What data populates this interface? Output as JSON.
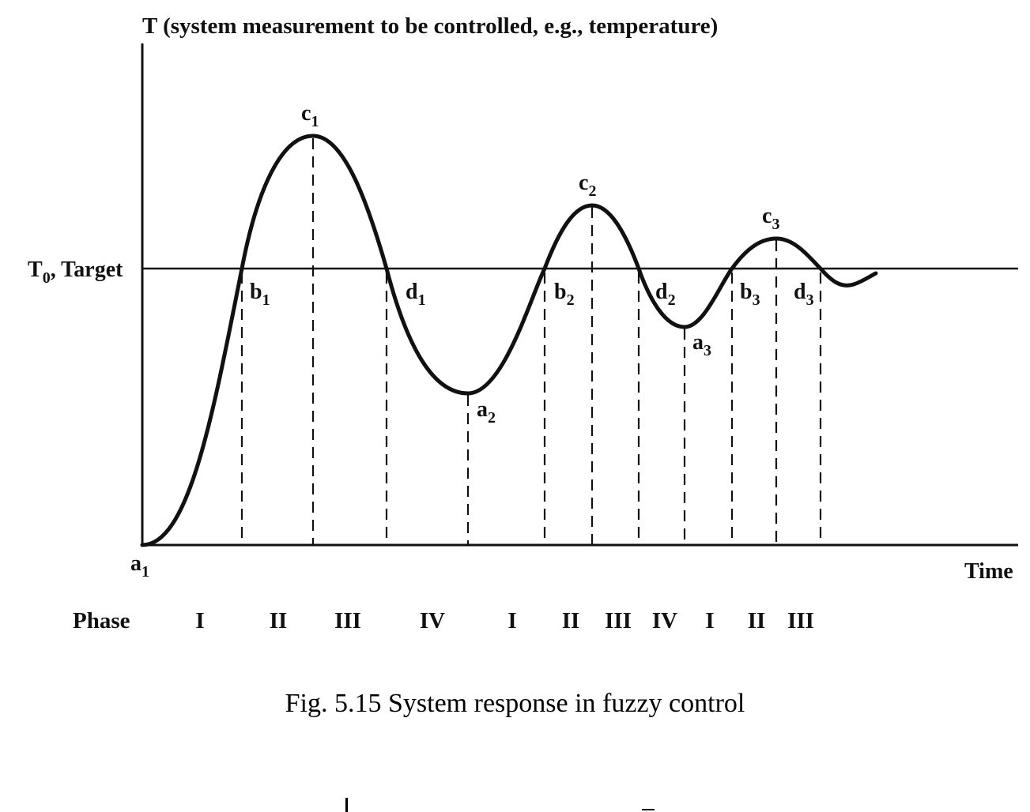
{
  "y_axis_title": "T (system measurement to be controlled, e.g., temperature)",
  "x_axis_title": "Time",
  "target": {
    "main": "T",
    "sub": "0",
    "suffix": ", Target"
  },
  "points": [
    {
      "id": "a1",
      "base": "a",
      "sub": "1"
    },
    {
      "id": "b1",
      "base": "b",
      "sub": "1"
    },
    {
      "id": "c1",
      "base": "c",
      "sub": "1"
    },
    {
      "id": "d1",
      "base": "d",
      "sub": "1"
    },
    {
      "id": "a2",
      "base": "a",
      "sub": "2"
    },
    {
      "id": "b2",
      "base": "b",
      "sub": "2"
    },
    {
      "id": "c2",
      "base": "c",
      "sub": "2"
    },
    {
      "id": "d2",
      "base": "d",
      "sub": "2"
    },
    {
      "id": "a3",
      "base": "a",
      "sub": "3"
    },
    {
      "id": "b3",
      "base": "b",
      "sub": "3"
    },
    {
      "id": "c3",
      "base": "c",
      "sub": "3"
    },
    {
      "id": "d3",
      "base": "d",
      "sub": "3"
    }
  ],
  "phase_label": "Phase",
  "phases": [
    "I",
    "II",
    "III",
    "IV",
    "I",
    "II",
    "III",
    "IV",
    "I",
    "II",
    "III"
  ],
  "caption": "Fig. 5.15  System response in fuzzy control",
  "colors": {
    "ink": "#111111",
    "background": "#ffffff"
  }
}
